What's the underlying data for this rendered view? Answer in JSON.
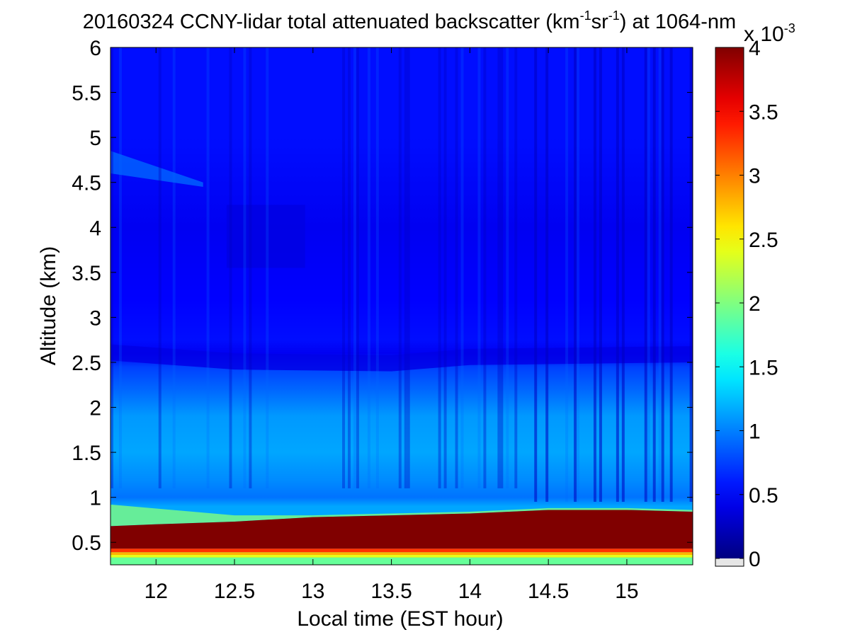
{
  "chart_data": {
    "type": "heatmap",
    "title": {
      "date": "20160324",
      "main": "CCNY-lidar total attenuated backscatter (km",
      "sup1": "-1",
      "mid": "sr",
      "sup2": "-1",
      "tail": ") at 1064-nm"
    },
    "xlabel": "Local time (EST hour)",
    "ylabel": "Altitude (km)",
    "xlim": [
      11.71,
      15.42
    ],
    "ylim": [
      0.25,
      6.0
    ],
    "xticks": [
      "12",
      "12.5",
      "13",
      "13.5",
      "14",
      "14.5",
      "15"
    ],
    "xtick_values": [
      12,
      12.5,
      13,
      13.5,
      14,
      14.5,
      15
    ],
    "yticks": [
      "0.5",
      "1",
      "1.5",
      "2",
      "2.5",
      "3",
      "3.5",
      "4",
      "4.5",
      "5",
      "5.5",
      "6"
    ],
    "ytick_values": [
      0.5,
      1,
      1.5,
      2,
      2.5,
      3,
      3.5,
      4,
      4.5,
      5,
      5.5,
      6
    ],
    "colormap": "jet",
    "colorbar": {
      "range": [
        0,
        4
      ],
      "ticks": [
        "0",
        "0.5",
        "1",
        "1.5",
        "2",
        "2.5",
        "3",
        "3.5",
        "4"
      ],
      "tick_values": [
        0,
        0.5,
        1,
        1.5,
        2,
        2.5,
        3,
        3.5,
        4
      ],
      "multiplier_base": "x 10",
      "multiplier_exp": "-3",
      "below_range_color": "#e6e6e6"
    },
    "grid": false,
    "features": {
      "aerosol_layer_top_km": [
        {
          "t": 11.71,
          "z": 0.68
        },
        {
          "t": 12.0,
          "z": 0.7
        },
        {
          "t": 12.5,
          "z": 0.73
        },
        {
          "t": 13.0,
          "z": 0.78
        },
        {
          "t": 13.5,
          "z": 0.8
        },
        {
          "t": 14.0,
          "z": 0.82
        },
        {
          "t": 14.5,
          "z": 0.86
        },
        {
          "t": 15.0,
          "z": 0.86
        },
        {
          "t": 15.42,
          "z": 0.84
        }
      ],
      "residual_layer_top_km": [
        {
          "t": 11.71,
          "z": 2.7
        },
        {
          "t": 12.5,
          "z": 2.6
        },
        {
          "t": 13.5,
          "z": 2.58
        },
        {
          "t": 14.0,
          "z": 2.65
        },
        {
          "t": 15.42,
          "z": 2.68
        }
      ]
    }
  }
}
